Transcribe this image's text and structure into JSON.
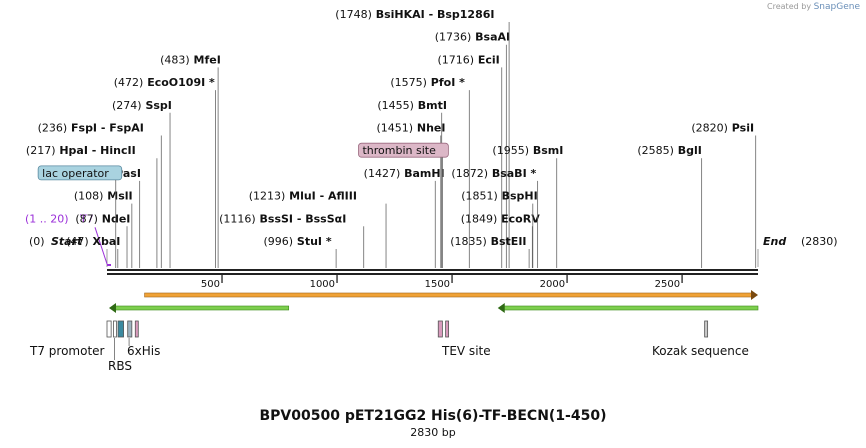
{
  "credit": {
    "prefix": "Created by",
    "brand": "SnapGene"
  },
  "map": {
    "title": "BPV00500 pET21GG2 His(6)-TF-BECN(1-450)",
    "length_label": "2830 bp",
    "length": 2830,
    "ticks": [
      {
        "pos": 500,
        "label": "500"
      },
      {
        "pos": 1000,
        "label": "1000"
      },
      {
        "pos": 1500,
        "label": "1500"
      },
      {
        "pos": 2000,
        "label": "2000"
      },
      {
        "pos": 2500,
        "label": "2500"
      }
    ],
    "start": {
      "pos": "(0)",
      "label": "Start",
      "site": 0
    },
    "end": {
      "label": "End",
      "pos": "(2830)",
      "site": 2830
    },
    "t7_label": {
      "pos": "(1 .. 20)",
      "label": "T7",
      "site": 10,
      "color": "#9b30d9"
    },
    "sites": [
      {
        "pos": "(47)",
        "name": "XbaI",
        "site": 47,
        "row": 0
      },
      {
        "pos": "(87)",
        "name": "NdeI",
        "site": 87,
        "row": 1
      },
      {
        "pos": "(108)",
        "name": "MslI",
        "site": 108,
        "row": 2
      },
      {
        "pos": "(142)",
        "name": "PasI",
        "site": 142,
        "row": 3
      },
      {
        "pos": "(217)",
        "name": "HpaI",
        "alt": "HincII",
        "site": 217,
        "row": 4
      },
      {
        "pos": "(236)",
        "name": "FspI",
        "alt": "FspAI",
        "site": 236,
        "row": 5
      },
      {
        "pos": "(274)",
        "name": "SspI",
        "site": 274,
        "row": 6
      },
      {
        "pos": "(472)",
        "name": "EcoO109I",
        "star": true,
        "site": 472,
        "row": 7
      },
      {
        "pos": "(483)",
        "name": "MfeI",
        "site": 483,
        "row": 8
      },
      {
        "pos": "(996)",
        "name": "StuI",
        "star": true,
        "site": 996,
        "row": 0
      },
      {
        "pos": "(1116)",
        "name": "BssSI",
        "alt": "BssSαI",
        "site": 1116,
        "row": 1
      },
      {
        "pos": "(1213)",
        "name": "MluI",
        "alt": "AflIII",
        "site": 1213,
        "row": 2
      },
      {
        "pos": "(1427)",
        "name": "BamHI",
        "site": 1427,
        "row": 3
      },
      {
        "pos": "(1451)",
        "name": "NheI",
        "site": 1451,
        "row": 5
      },
      {
        "pos": "(1455)",
        "name": "BmtI",
        "site": 1455,
        "row": 6
      },
      {
        "pos": "(1575)",
        "name": "PfoI",
        "star": true,
        "site": 1575,
        "row": 7
      },
      {
        "pos": "(1716)",
        "name": "EciI",
        "site": 1716,
        "row": 8
      },
      {
        "pos": "(1736)",
        "name": "BsaAI",
        "site": 1736,
        "row": 9
      },
      {
        "pos": "(1748)",
        "name": "BsiHKAI",
        "alt": "Bsp1286I",
        "site": 1748,
        "row": 10
      },
      {
        "pos": "(1835)",
        "name": "BstEII",
        "site": 1835,
        "row": 0
      },
      {
        "pos": "(1849)",
        "name": "EcoRV",
        "site": 1849,
        "row": 1
      },
      {
        "pos": "(1851)",
        "name": "BspHI",
        "site": 1851,
        "row": 2
      },
      {
        "pos": "(1872)",
        "name": "BsaBI",
        "star": true,
        "site": 1872,
        "row": 3
      },
      {
        "pos": "(1955)",
        "name": "BsmI",
        "site": 1955,
        "row": 4
      },
      {
        "pos": "(2585)",
        "name": "BglI",
        "site": 2585,
        "row": 4
      },
      {
        "pos": "(2820)",
        "name": "PsiI",
        "site": 2820,
        "row": 5
      }
    ],
    "feature_labels": [
      {
        "label": "lac operator",
        "site": 38,
        "row": 3,
        "color": "#a9d3e0",
        "border": "#5a8aa0"
      },
      {
        "label": "thrombin site",
        "site": 1458,
        "row": 4,
        "color": "#dcb7c7",
        "border": "#9a6a80"
      }
    ],
    "orange_arrow": {
      "from": 85,
      "to": 2830,
      "color": "#f0a236",
      "direction": "right"
    },
    "green_arrows": [
      {
        "from": 0,
        "to": 790,
        "color": "#7dcf4e",
        "direction": "left"
      },
      {
        "from": 1690,
        "to": 2830,
        "color": "#7dcf4e",
        "direction": "left"
      }
    ],
    "features": [
      {
        "label": "T7 promoter",
        "from": 0,
        "to": 18,
        "color": "#ffffff",
        "lrow": 0
      },
      {
        "label": "RBS",
        "from": 28,
        "to": 38,
        "color": "#ffffff",
        "lrow": 1
      },
      {
        "label": "",
        "from": 48,
        "to": 72,
        "color": "#3b8aa0",
        "lrow": -1
      },
      {
        "label": "6xHis",
        "from": 90,
        "to": 108,
        "color": "#9fb4c0",
        "lrow": 0
      },
      {
        "label": "",
        "from": 123,
        "to": 130,
        "color": "#d99bbd",
        "lrow": -1
      },
      {
        "label": "TEV site",
        "from": 1440,
        "to": 1458,
        "color": "#d99bbd",
        "lrow": 0
      },
      {
        "label": "",
        "from": 1472,
        "to": 1479,
        "color": "#d99bbd",
        "lrow": -1
      },
      {
        "label": "Kozak sequence",
        "from": 2598,
        "to": 2606,
        "color": "#c8c8c8",
        "lrow": 0
      }
    ]
  }
}
